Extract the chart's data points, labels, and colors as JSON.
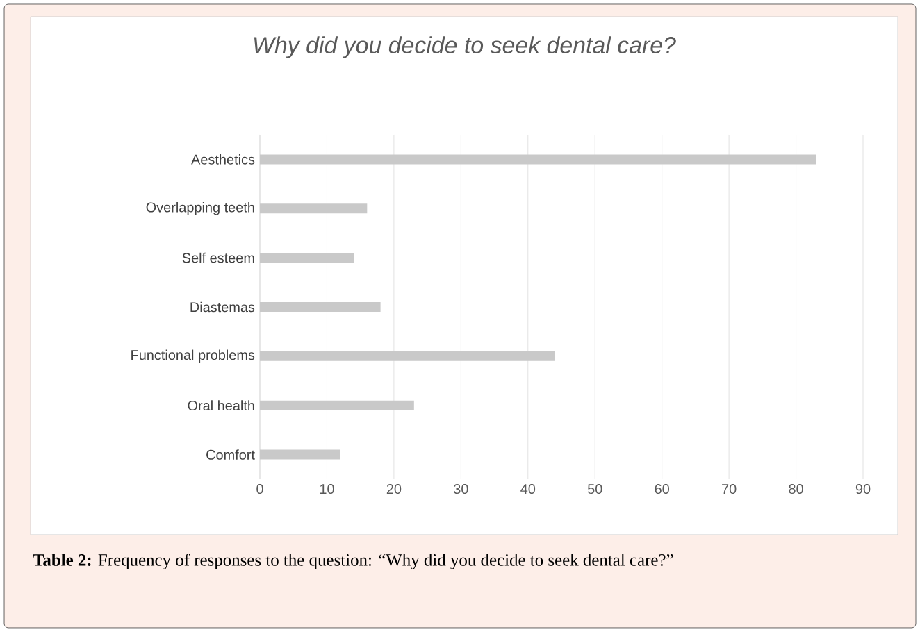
{
  "chart_data": {
    "type": "bar",
    "orientation": "horizontal",
    "title": "Why did you decide to seek dental care?",
    "categories": [
      "Aesthetics",
      "Overlapping teeth",
      "Self esteem",
      "Diastemas",
      "Functional problems",
      "Oral health",
      "Comfort"
    ],
    "values": [
      83,
      16,
      14,
      18,
      44,
      23,
      12
    ],
    "color": "#c9c9c9",
    "xlim": [
      0,
      90
    ],
    "xticks": [
      0,
      10,
      20,
      30,
      40,
      50,
      60,
      70,
      80,
      90
    ],
    "grid": "x",
    "annotations": [
      "**Table 2:** Frequency of responses to the question: “Why did you decide to seek dental care?”"
    ]
  }
}
